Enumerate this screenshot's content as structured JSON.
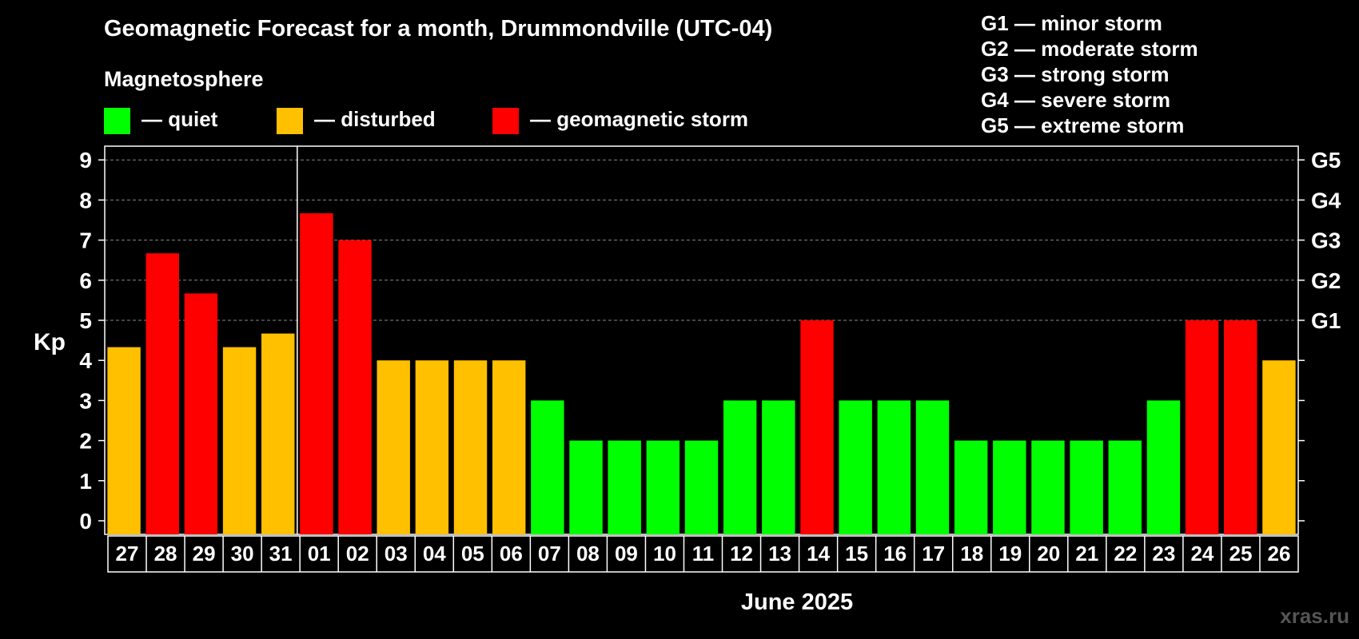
{
  "title": "Geomagnetic Forecast for a month, Drummondville (UTC-04)",
  "legend": {
    "heading": "Magnetosphere",
    "items": [
      {
        "label": "— quiet",
        "color": "#00ff00"
      },
      {
        "label": "— disturbed",
        "color": "#ffc000"
      },
      {
        "label": "— geomagnetic storm",
        "color": "#ff0000"
      }
    ]
  },
  "storm_scale": [
    "G1 — minor storm",
    "G2 — moderate storm",
    "G3 — strong storm",
    "G4 — severe storm",
    "G5 — extreme storm"
  ],
  "watermark": "xras.ru",
  "colors": {
    "quiet": "#00ff00",
    "disturbed": "#ffc000",
    "storm": "#ff0000",
    "background": "#000000",
    "grid": "#888888"
  },
  "chart_data": {
    "type": "bar",
    "title": "Geomagnetic Forecast for a month, Drummondville (UTC-04)",
    "ylabel": "Kp",
    "xlabel": "June 2025",
    "ylim": [
      0,
      9
    ],
    "yticks": [
      0,
      1,
      2,
      3,
      4,
      5,
      6,
      7,
      8,
      9
    ],
    "grid": "dashed at Kp 5-9",
    "right_axis": [
      {
        "value": 5,
        "label": "G1"
      },
      {
        "value": 6,
        "label": "G2"
      },
      {
        "value": 7,
        "label": "G3"
      },
      {
        "value": 8,
        "label": "G4"
      },
      {
        "value": 9,
        "label": "G5"
      }
    ],
    "month_divider_after": "31",
    "categories": [
      "27",
      "28",
      "29",
      "30",
      "31",
      "01",
      "02",
      "03",
      "04",
      "05",
      "06",
      "07",
      "08",
      "09",
      "10",
      "11",
      "12",
      "13",
      "14",
      "15",
      "16",
      "17",
      "18",
      "19",
      "20",
      "21",
      "22",
      "23",
      "24",
      "25",
      "26"
    ],
    "values": [
      4.33,
      6.67,
      5.67,
      4.33,
      4.67,
      7.67,
      7,
      4,
      4,
      4,
      4,
      3,
      2,
      2,
      2,
      2,
      3,
      3,
      5,
      3,
      3,
      3,
      2,
      2,
      2,
      2,
      2,
      3,
      5,
      5,
      4
    ],
    "levels": [
      "disturbed",
      "storm",
      "storm",
      "disturbed",
      "disturbed",
      "storm",
      "storm",
      "disturbed",
      "disturbed",
      "disturbed",
      "disturbed",
      "quiet",
      "quiet",
      "quiet",
      "quiet",
      "quiet",
      "quiet",
      "quiet",
      "storm",
      "quiet",
      "quiet",
      "quiet",
      "quiet",
      "quiet",
      "quiet",
      "quiet",
      "quiet",
      "quiet",
      "storm",
      "storm",
      "disturbed"
    ]
  }
}
